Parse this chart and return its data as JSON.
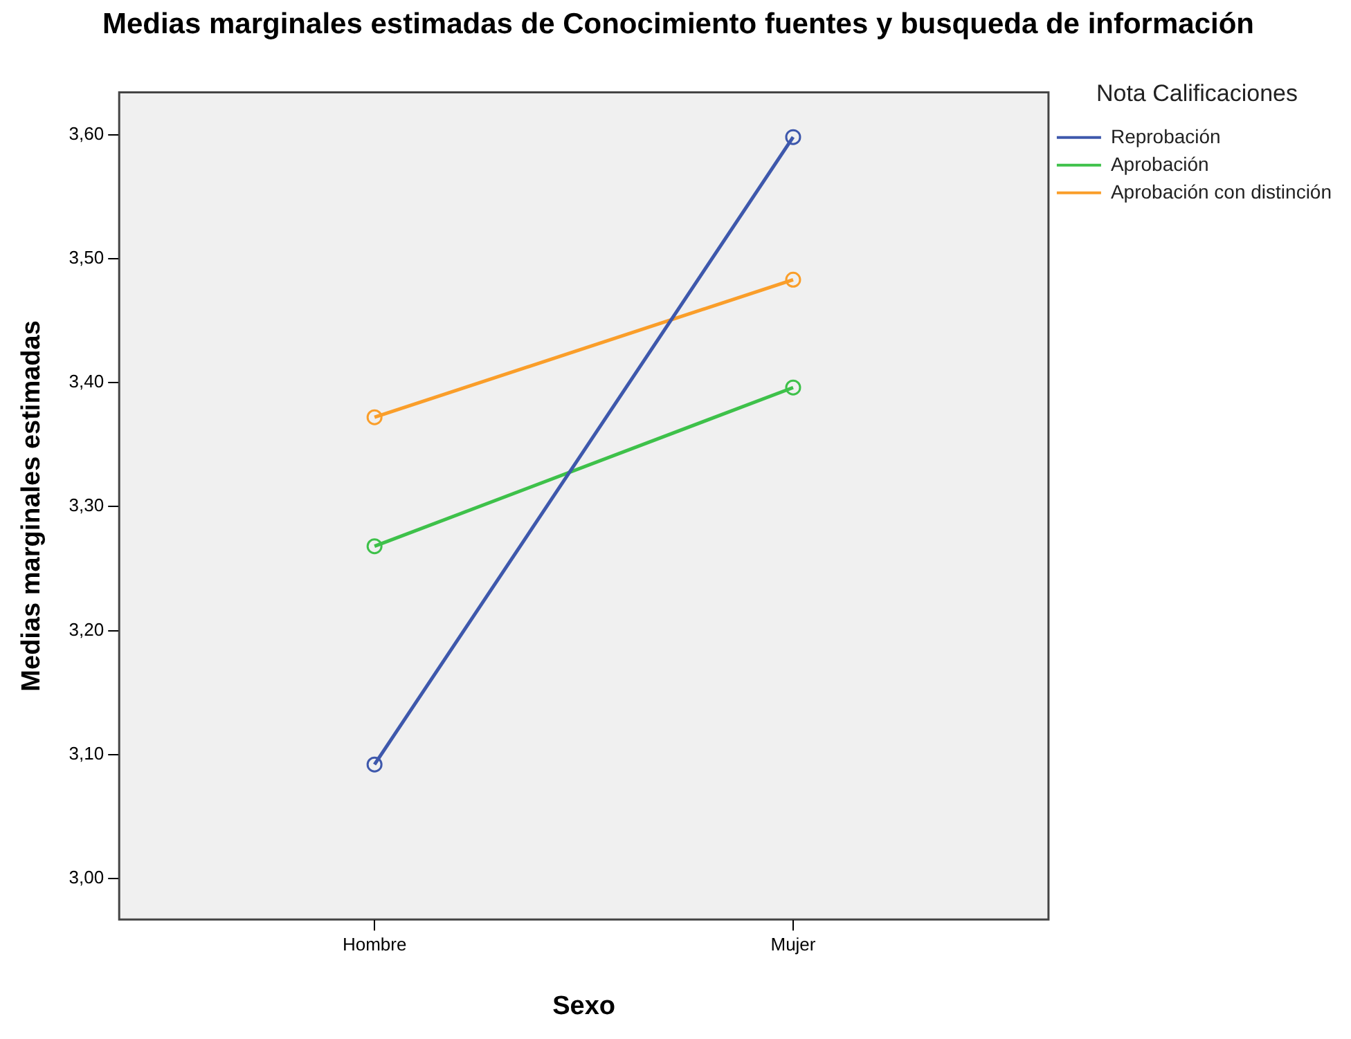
{
  "chart_data": {
    "type": "line",
    "title": "Medias marginales estimadas de Conocimiento fuentes y busqueda de información",
    "xlabel": "Sexo",
    "ylabel": "Medias marginales estimadas",
    "legend_title": "Nota Calificaciones",
    "categories": [
      "Hombre",
      "Mujer"
    ],
    "series": [
      {
        "name": "Reprobación",
        "color": "#3e58ac",
        "values": [
          3.092,
          3.598
        ]
      },
      {
        "name": "Aprobación",
        "color": "#3ec14a",
        "values": [
          3.268,
          3.396
        ]
      },
      {
        "name": "Aprobación con distinción",
        "color": "#fa9e2a",
        "values": [
          3.372,
          3.483
        ]
      }
    ],
    "ylim": [
      2.967,
      3.634
    ],
    "yticks": [
      {
        "value": 3.0,
        "label": "3,00"
      },
      {
        "value": 3.1,
        "label": "3,10"
      },
      {
        "value": 3.2,
        "label": "3,20"
      },
      {
        "value": 3.3,
        "label": "3,30"
      },
      {
        "value": 3.4,
        "label": "3,40"
      },
      {
        "value": 3.5,
        "label": "3,50"
      },
      {
        "value": 3.6,
        "label": "3,60"
      }
    ],
    "grid": false,
    "legend": "top right",
    "marker": "circle",
    "line_style": "solid"
  }
}
